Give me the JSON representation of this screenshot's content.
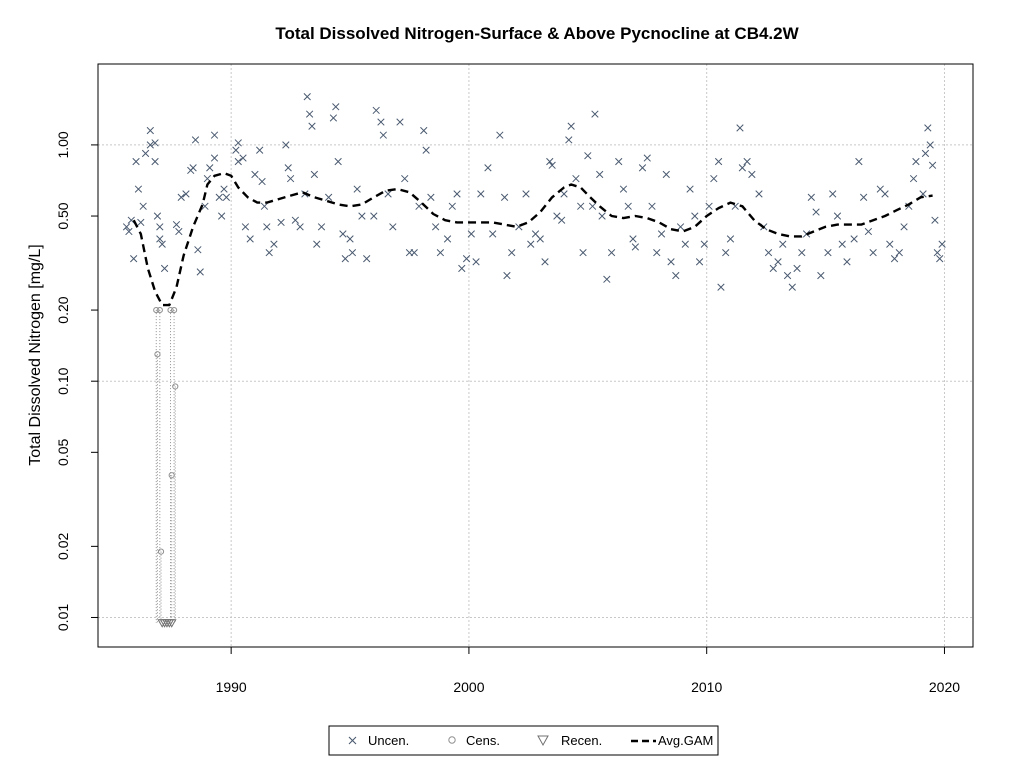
{
  "chart_data": {
    "type": "scatter",
    "title": "Total Dissolved Nitrogen-Surface & Above Pycnocline at CB4.2W",
    "xlabel": "",
    "ylabel": "Total Dissolved Nitrogen [mg/L]",
    "y_scale": "log",
    "xlim": [
      1984.4,
      2021.2
    ],
    "ylim": [
      0.0075,
      2.2
    ],
    "x_ticks": [
      {
        "value": 1990,
        "label": "1990"
      },
      {
        "value": 2000,
        "label": "2000"
      },
      {
        "value": 2010,
        "label": "2010"
      },
      {
        "value": 2020,
        "label": "2020"
      }
    ],
    "y_ticks": [
      {
        "value": 0.01,
        "label": "0.01"
      },
      {
        "value": 0.02,
        "label": "0.02"
      },
      {
        "value": 0.05,
        "label": "0.05"
      },
      {
        "value": 0.1,
        "label": "0.10"
      },
      {
        "value": 0.2,
        "label": "0.20"
      },
      {
        "value": 0.5,
        "label": "0.50"
      },
      {
        "value": 1.0,
        "label": "1.00"
      }
    ],
    "grid": true,
    "grid_x": [
      1990,
      2000,
      2010,
      2020
    ],
    "grid_y": [
      0.01,
      0.1,
      1.0
    ],
    "legend_position": "bottom-center",
    "colors": {
      "uncensored": "#4a5a70",
      "censored": "#909090",
      "gam": "#000000",
      "grid": "#c8c8c8"
    },
    "series": [
      {
        "name": "Uncen.",
        "marker": "x-icon",
        "points": [
          [
            1985.6,
            0.45
          ],
          [
            1985.7,
            0.43
          ],
          [
            1985.8,
            0.48
          ],
          [
            1985.9,
            0.33
          ],
          [
            1986.0,
            0.85
          ],
          [
            1986.1,
            0.65
          ],
          [
            1986.2,
            0.47
          ],
          [
            1986.3,
            0.55
          ],
          [
            1986.4,
            0.92
          ],
          [
            1986.6,
            1.0
          ],
          [
            1986.6,
            1.15
          ],
          [
            1986.8,
            1.02
          ],
          [
            1986.8,
            0.85
          ],
          [
            1986.9,
            0.5
          ],
          [
            1987.0,
            0.45
          ],
          [
            1987.0,
            0.4
          ],
          [
            1987.1,
            0.38
          ],
          [
            1987.2,
            0.3
          ],
          [
            1987.7,
            0.46
          ],
          [
            1987.8,
            0.43
          ],
          [
            1987.9,
            0.6
          ],
          [
            1988.1,
            0.62
          ],
          [
            1988.3,
            0.78
          ],
          [
            1988.4,
            0.8
          ],
          [
            1988.5,
            1.05
          ],
          [
            1988.6,
            0.36
          ],
          [
            1988.7,
            0.29
          ],
          [
            1988.9,
            0.55
          ],
          [
            1989.0,
            0.72
          ],
          [
            1989.1,
            0.8
          ],
          [
            1989.3,
            0.88
          ],
          [
            1989.3,
            1.1
          ],
          [
            1989.5,
            0.6
          ],
          [
            1989.6,
            0.5
          ],
          [
            1989.7,
            0.65
          ],
          [
            1989.8,
            0.6
          ],
          [
            1990.2,
            0.95
          ],
          [
            1990.3,
            0.85
          ],
          [
            1990.3,
            1.02
          ],
          [
            1990.5,
            0.88
          ],
          [
            1990.6,
            0.45
          ],
          [
            1990.8,
            0.4
          ],
          [
            1991.0,
            0.75
          ],
          [
            1991.2,
            0.95
          ],
          [
            1991.3,
            0.7
          ],
          [
            1991.4,
            0.55
          ],
          [
            1991.5,
            0.45
          ],
          [
            1991.6,
            0.35
          ],
          [
            1991.8,
            0.38
          ],
          [
            1992.1,
            0.47
          ],
          [
            1992.3,
            1.0
          ],
          [
            1992.4,
            0.8
          ],
          [
            1992.5,
            0.72
          ],
          [
            1992.7,
            0.48
          ],
          [
            1992.9,
            0.45
          ],
          [
            1993.1,
            0.62
          ],
          [
            1993.2,
            1.6
          ],
          [
            1993.3,
            1.35
          ],
          [
            1993.4,
            1.2
          ],
          [
            1993.5,
            0.75
          ],
          [
            1993.6,
            0.38
          ],
          [
            1993.8,
            0.45
          ],
          [
            1994.1,
            0.6
          ],
          [
            1994.3,
            1.3
          ],
          [
            1994.4,
            1.45
          ],
          [
            1994.5,
            0.85
          ],
          [
            1994.7,
            0.42
          ],
          [
            1994.8,
            0.33
          ],
          [
            1995.0,
            0.4
          ],
          [
            1995.1,
            0.35
          ],
          [
            1995.3,
            0.65
          ],
          [
            1995.5,
            0.5
          ],
          [
            1995.7,
            0.33
          ],
          [
            1996.0,
            0.5
          ],
          [
            1996.1,
            1.4
          ],
          [
            1996.3,
            1.25
          ],
          [
            1996.4,
            1.1
          ],
          [
            1996.6,
            0.62
          ],
          [
            1996.8,
            0.45
          ],
          [
            1997.1,
            1.25
          ],
          [
            1997.3,
            0.72
          ],
          [
            1997.5,
            0.35
          ],
          [
            1997.7,
            0.35
          ],
          [
            1997.9,
            0.55
          ],
          [
            1998.1,
            1.15
          ],
          [
            1998.2,
            0.95
          ],
          [
            1998.4,
            0.6
          ],
          [
            1998.6,
            0.45
          ],
          [
            1998.8,
            0.35
          ],
          [
            1999.1,
            0.4
          ],
          [
            1999.3,
            0.55
          ],
          [
            1999.5,
            0.62
          ],
          [
            1999.7,
            0.3
          ],
          [
            1999.9,
            0.33
          ],
          [
            2000.1,
            0.42
          ],
          [
            2000.3,
            0.32
          ],
          [
            2000.5,
            0.62
          ],
          [
            2000.8,
            0.8
          ],
          [
            2001.0,
            0.42
          ],
          [
            2001.3,
            1.1
          ],
          [
            2001.5,
            0.6
          ],
          [
            2001.6,
            0.28
          ],
          [
            2001.8,
            0.35
          ],
          [
            2002.1,
            0.45
          ],
          [
            2002.4,
            0.62
          ],
          [
            2002.6,
            0.38
          ],
          [
            2002.8,
            0.42
          ],
          [
            2003.0,
            0.4
          ],
          [
            2003.2,
            0.32
          ],
          [
            2003.4,
            0.85
          ],
          [
            2003.5,
            0.82
          ],
          [
            2003.7,
            0.5
          ],
          [
            2003.9,
            0.48
          ],
          [
            2004.0,
            0.62
          ],
          [
            2004.2,
            1.05
          ],
          [
            2004.3,
            1.2
          ],
          [
            2004.5,
            0.72
          ],
          [
            2004.7,
            0.55
          ],
          [
            2004.8,
            0.35
          ],
          [
            2005.0,
            0.9
          ],
          [
            2005.2,
            0.55
          ],
          [
            2005.3,
            1.35
          ],
          [
            2005.5,
            0.75
          ],
          [
            2005.6,
            0.5
          ],
          [
            2005.8,
            0.27
          ],
          [
            2006.0,
            0.35
          ],
          [
            2006.3,
            0.85
          ],
          [
            2006.5,
            0.65
          ],
          [
            2006.7,
            0.55
          ],
          [
            2006.9,
            0.4
          ],
          [
            2007.0,
            0.37
          ],
          [
            2007.3,
            0.8
          ],
          [
            2007.5,
            0.88
          ],
          [
            2007.7,
            0.55
          ],
          [
            2007.9,
            0.35
          ],
          [
            2008.1,
            0.42
          ],
          [
            2008.3,
            0.75
          ],
          [
            2008.5,
            0.32
          ],
          [
            2008.7,
            0.28
          ],
          [
            2008.9,
            0.45
          ],
          [
            2009.1,
            0.38
          ],
          [
            2009.3,
            0.65
          ],
          [
            2009.5,
            0.5
          ],
          [
            2009.7,
            0.32
          ],
          [
            2009.9,
            0.38
          ],
          [
            2010.1,
            0.55
          ],
          [
            2010.3,
            0.72
          ],
          [
            2010.5,
            0.85
          ],
          [
            2010.6,
            0.25
          ],
          [
            2010.8,
            0.35
          ],
          [
            2011.0,
            0.4
          ],
          [
            2011.2,
            0.55
          ],
          [
            2011.4,
            1.18
          ],
          [
            2011.5,
            0.8
          ],
          [
            2011.7,
            0.85
          ],
          [
            2011.9,
            0.75
          ],
          [
            2012.2,
            0.62
          ],
          [
            2012.4,
            0.45
          ],
          [
            2012.6,
            0.35
          ],
          [
            2012.8,
            0.3
          ],
          [
            2013.0,
            0.32
          ],
          [
            2013.2,
            0.38
          ],
          [
            2013.4,
            0.28
          ],
          [
            2013.6,
            0.25
          ],
          [
            2013.8,
            0.3
          ],
          [
            2014.0,
            0.35
          ],
          [
            2014.2,
            0.42
          ],
          [
            2014.4,
            0.6
          ],
          [
            2014.6,
            0.52
          ],
          [
            2014.8,
            0.28
          ],
          [
            2015.1,
            0.35
          ],
          [
            2015.3,
            0.62
          ],
          [
            2015.5,
            0.5
          ],
          [
            2015.7,
            0.38
          ],
          [
            2015.9,
            0.32
          ],
          [
            2016.2,
            0.4
          ],
          [
            2016.4,
            0.85
          ],
          [
            2016.6,
            0.6
          ],
          [
            2016.8,
            0.43
          ],
          [
            2017.0,
            0.35
          ],
          [
            2017.3,
            0.65
          ],
          [
            2017.5,
            0.62
          ],
          [
            2017.7,
            0.38
          ],
          [
            2017.9,
            0.33
          ],
          [
            2018.1,
            0.35
          ],
          [
            2018.3,
            0.45
          ],
          [
            2018.5,
            0.55
          ],
          [
            2018.7,
            0.72
          ],
          [
            2018.8,
            0.85
          ],
          [
            2019.1,
            0.62
          ],
          [
            2019.2,
            0.92
          ],
          [
            2019.3,
            1.18
          ],
          [
            2019.4,
            1.0
          ],
          [
            2019.5,
            0.82
          ],
          [
            2019.6,
            0.48
          ],
          [
            2019.7,
            0.35
          ],
          [
            2019.8,
            0.33
          ],
          [
            2019.9,
            0.38
          ]
        ]
      },
      {
        "name": "Cens.",
        "marker": "circle-icon",
        "points": [
          [
            1986.85,
            0.2
          ],
          [
            1986.9,
            0.13
          ],
          [
            1987.0,
            0.2
          ],
          [
            1987.05,
            0.019
          ],
          [
            1987.45,
            0.2
          ],
          [
            1987.5,
            0.04
          ],
          [
            1987.6,
            0.2
          ],
          [
            1987.65,
            0.095
          ]
        ]
      },
      {
        "name": "Recen.",
        "marker": "triangle-down-icon",
        "points": [
          [
            1987.1,
            0.0095
          ],
          [
            1987.2,
            0.0095
          ],
          [
            1987.3,
            0.0095
          ],
          [
            1987.4,
            0.0095
          ],
          [
            1987.5,
            0.0095
          ]
        ]
      },
      {
        "name": "Avg.GAM",
        "style": "dashed-line",
        "points": [
          [
            1985.9,
            0.48
          ],
          [
            1986.2,
            0.42
          ],
          [
            1986.5,
            0.3
          ],
          [
            1986.8,
            0.24
          ],
          [
            1987.1,
            0.21
          ],
          [
            1987.4,
            0.21
          ],
          [
            1987.7,
            0.25
          ],
          [
            1988.0,
            0.34
          ],
          [
            1988.4,
            0.45
          ],
          [
            1988.8,
            0.56
          ],
          [
            1989.0,
            0.68
          ],
          [
            1989.3,
            0.74
          ],
          [
            1989.7,
            0.76
          ],
          [
            1990.0,
            0.74
          ],
          [
            1990.3,
            0.66
          ],
          [
            1990.7,
            0.6
          ],
          [
            1991.1,
            0.57
          ],
          [
            1991.5,
            0.57
          ],
          [
            1992.0,
            0.59
          ],
          [
            1992.5,
            0.61
          ],
          [
            1993.0,
            0.63
          ],
          [
            1993.5,
            0.6
          ],
          [
            1994.0,
            0.58
          ],
          [
            1994.5,
            0.56
          ],
          [
            1995.0,
            0.55
          ],
          [
            1995.5,
            0.56
          ],
          [
            1996.0,
            0.6
          ],
          [
            1996.5,
            0.64
          ],
          [
            1997.0,
            0.65
          ],
          [
            1997.5,
            0.63
          ],
          [
            1998.0,
            0.57
          ],
          [
            1998.5,
            0.51
          ],
          [
            1999.0,
            0.48
          ],
          [
            1999.5,
            0.47
          ],
          [
            2000.0,
            0.47
          ],
          [
            2000.5,
            0.47
          ],
          [
            2001.0,
            0.47
          ],
          [
            2001.5,
            0.46
          ],
          [
            2002.0,
            0.45
          ],
          [
            2002.5,
            0.47
          ],
          [
            2003.0,
            0.52
          ],
          [
            2003.5,
            0.6
          ],
          [
            2004.0,
            0.66
          ],
          [
            2004.3,
            0.68
          ],
          [
            2004.7,
            0.66
          ],
          [
            2005.1,
            0.6
          ],
          [
            2005.5,
            0.55
          ],
          [
            2006.0,
            0.5
          ],
          [
            2006.5,
            0.49
          ],
          [
            2007.0,
            0.5
          ],
          [
            2007.5,
            0.49
          ],
          [
            2008.0,
            0.47
          ],
          [
            2008.5,
            0.44
          ],
          [
            2009.0,
            0.43
          ],
          [
            2009.5,
            0.45
          ],
          [
            2010.0,
            0.5
          ],
          [
            2010.5,
            0.54
          ],
          [
            2011.0,
            0.57
          ],
          [
            2011.5,
            0.55
          ],
          [
            2012.0,
            0.48
          ],
          [
            2012.5,
            0.44
          ],
          [
            2013.0,
            0.42
          ],
          [
            2013.5,
            0.41
          ],
          [
            2014.0,
            0.41
          ],
          [
            2014.5,
            0.43
          ],
          [
            2015.0,
            0.45
          ],
          [
            2015.5,
            0.46
          ],
          [
            2016.0,
            0.46
          ],
          [
            2016.5,
            0.46
          ],
          [
            2017.0,
            0.48
          ],
          [
            2017.5,
            0.5
          ],
          [
            2018.0,
            0.53
          ],
          [
            2018.5,
            0.56
          ],
          [
            2019.0,
            0.6
          ],
          [
            2019.5,
            0.61
          ]
        ]
      }
    ],
    "legend": [
      {
        "label": "Uncen.",
        "marker": "x-icon"
      },
      {
        "label": "Cens.",
        "marker": "circle-icon"
      },
      {
        "label": "Recen.",
        "marker": "triangle-down-icon"
      },
      {
        "label": "Avg.GAM",
        "marker": "dashed-line-icon"
      }
    ]
  }
}
